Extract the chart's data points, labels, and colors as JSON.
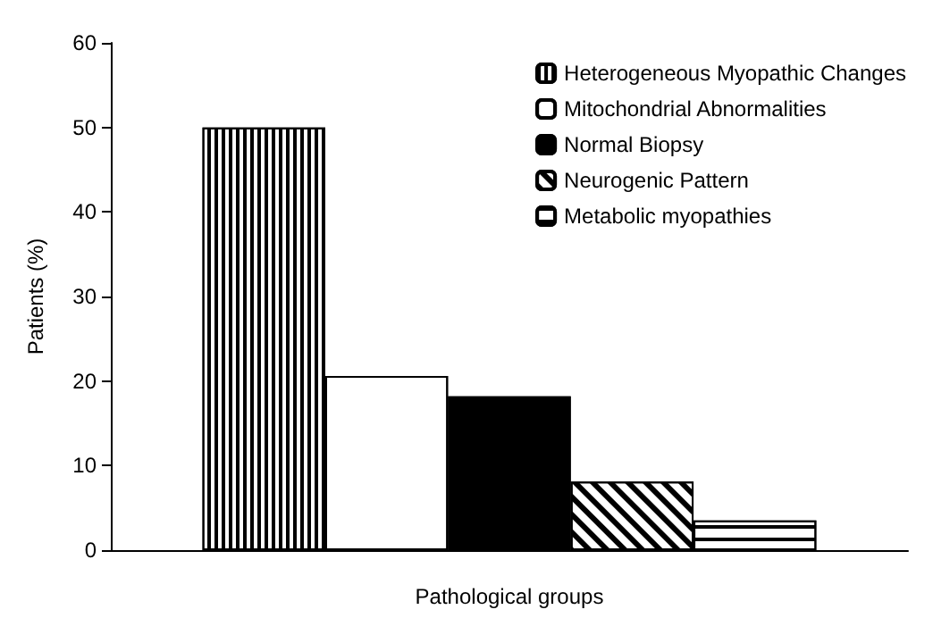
{
  "chart_data": {
    "type": "bar",
    "xlabel": "Pathological groups",
    "ylabel": "Patients (%)",
    "categories": [
      null
    ],
    "series": [
      {
        "name": "Heterogeneous Myopathic Changes",
        "color": "#ffffff",
        "values": [
          50
        ]
      },
      {
        "name": "Mitochondrial Abnormalities",
        "color": "#ffffff",
        "values": [
          20.6
        ]
      },
      {
        "name": "Normal Biopsy",
        "color": "#000000",
        "values": [
          18.2
        ]
      },
      {
        "name": "Neurogenic Pattern",
        "color": "#ffffff",
        "values": [
          8.1
        ]
      },
      {
        "name": "Metabolic myopathies",
        "color": "#ffffff",
        "values": [
          3.5
        ]
      }
    ],
    "ylim": [
      0,
      60
    ],
    "yticks": [
      0,
      10,
      20,
      30,
      40,
      50,
      60
    ],
    "grid": false,
    "legend": "top right"
  }
}
